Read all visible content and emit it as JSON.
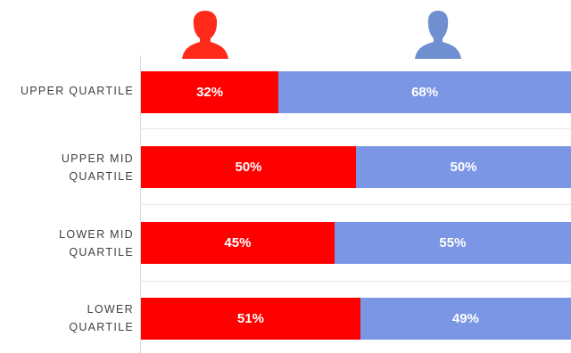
{
  "chart_data": {
    "type": "bar",
    "stacked": true,
    "orientation": "horizontal",
    "categories": [
      "UPPER QUARTILE",
      "UPPER MID\nQUARTILE",
      "LOWER MID\nQUARTILE",
      "LOWER\nQUARTILE"
    ],
    "series": [
      {
        "values": [
          32,
          50,
          45,
          51
        ],
        "labels": [
          "32%",
          "50%",
          "45%",
          "51%"
        ],
        "color": "#ff0000"
      },
      {
        "values": [
          68,
          50,
          55,
          49
        ],
        "labels": [
          "68%",
          "50%",
          "55%",
          "49%"
        ],
        "color": "#7b96e4"
      }
    ],
    "xlim": [
      0,
      100
    ],
    "legend": "icons-top",
    "icons": [
      {
        "icon": "female-person-icon",
        "color": "#ff2a1a"
      },
      {
        "icon": "male-person-icon",
        "color": "#6f8fd0"
      }
    ]
  }
}
